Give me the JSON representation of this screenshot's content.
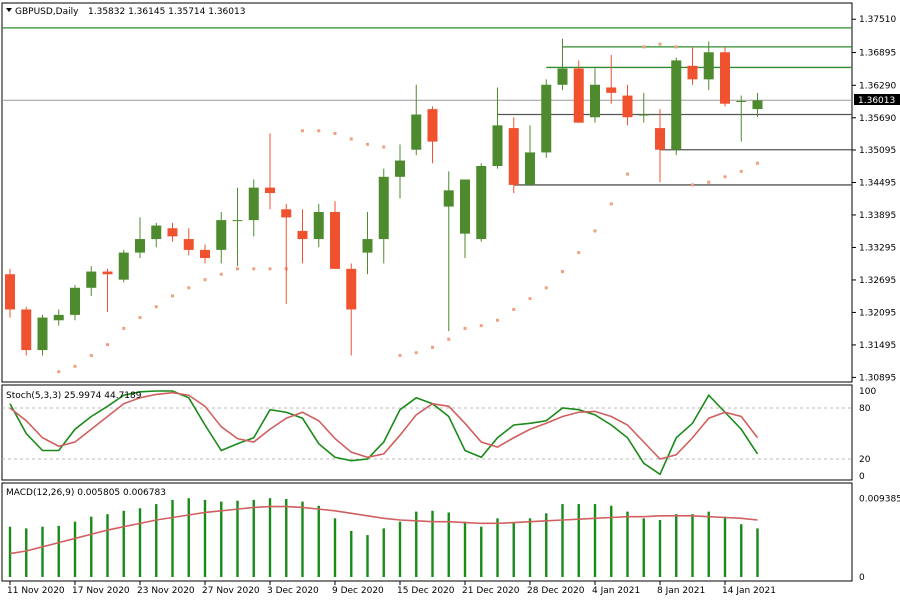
{
  "header": {
    "symbol_label": "GBPUSD,Daily",
    "ohlc": "1.35832 1.36145 1.35714 1.36013"
  },
  "colors": {
    "bull": "#4e8a2e",
    "bear": "#f0522f",
    "sar": "#f0a080",
    "level": "#2e8b2e",
    "support": "#555555",
    "stoch_main": "#1a8a1a",
    "stoch_signal": "#d06060",
    "macd_hist": "#1a8a1a",
    "macd_signal": "#d06060",
    "price_tag_bg": "#000000"
  },
  "chart_data": [
    {
      "type": "candlestick",
      "panel": "price",
      "y_ticks": [
        "1.37510",
        "1.36895",
        "1.36290",
        "1.35690",
        "1.35095",
        "1.34495",
        "1.33895",
        "1.33295",
        "1.32695",
        "1.32095",
        "1.31495",
        "1.30895"
      ],
      "ylim": [
        1.3081,
        1.3781
      ],
      "current_price": "1.36013",
      "x_ticks": [
        {
          "i": 0,
          "label": "11 Nov 2020"
        },
        {
          "i": 4,
          "label": "17 Nov 2020"
        },
        {
          "i": 8,
          "label": "23 Nov 2020"
        },
        {
          "i": 12,
          "label": "27 Nov 2020"
        },
        {
          "i": 16,
          "label": "3 Dec 2020"
        },
        {
          "i": 20,
          "label": "9 Dec 2020"
        },
        {
          "i": 24,
          "label": "15 Dec 2020"
        },
        {
          "i": 28,
          "label": "21 Dec 2020"
        },
        {
          "i": 32,
          "label": "28 Dec 2020"
        },
        {
          "i": 36,
          "label": "4 Jan 2021"
        },
        {
          "i": 40,
          "label": "8 Jan 2021"
        },
        {
          "i": 44,
          "label": "14 Jan 2021"
        }
      ],
      "candles": [
        [
          1.328,
          1.329,
          1.32,
          1.3215
        ],
        [
          1.3215,
          1.322,
          1.313,
          1.314
        ],
        [
          1.314,
          1.3205,
          1.313,
          1.32
        ],
        [
          1.3195,
          1.3215,
          1.3185,
          1.3205
        ],
        [
          1.3205,
          1.326,
          1.3195,
          1.3255
        ],
        [
          1.3255,
          1.3295,
          1.324,
          1.3285
        ],
        [
          1.3285,
          1.329,
          1.321,
          1.328
        ],
        [
          1.327,
          1.3325,
          1.3265,
          1.332
        ],
        [
          1.332,
          1.3385,
          1.331,
          1.3345
        ],
        [
          1.3345,
          1.3375,
          1.333,
          1.337
        ],
        [
          1.3365,
          1.3375,
          1.334,
          1.335
        ],
        [
          1.3345,
          1.3365,
          1.3315,
          1.3325
        ],
        [
          1.3325,
          1.3335,
          1.33,
          1.331
        ],
        [
          1.3325,
          1.3395,
          1.33,
          1.338
        ],
        [
          1.338,
          1.344,
          1.3295,
          1.338
        ],
        [
          1.338,
          1.3455,
          1.335,
          1.344
        ],
        [
          1.344,
          1.354,
          1.34,
          1.343
        ],
        [
          1.34,
          1.341,
          1.3225,
          1.3385
        ],
        [
          1.336,
          1.34,
          1.33,
          1.3345
        ],
        [
          1.3345,
          1.341,
          1.333,
          1.3395
        ],
        [
          1.3395,
          1.3415,
          1.329,
          1.329
        ],
        [
          1.329,
          1.33,
          1.313,
          1.3215
        ],
        [
          1.332,
          1.3395,
          1.328,
          1.3345
        ],
        [
          1.3345,
          1.3475,
          1.33,
          1.346
        ],
        [
          1.346,
          1.352,
          1.342,
          1.349
        ],
        [
          1.351,
          1.363,
          1.35,
          1.3575
        ],
        [
          1.3585,
          1.359,
          1.3485,
          1.3525
        ],
        [
          1.3405,
          1.347,
          1.3175,
          1.3435
        ],
        [
          1.3355,
          1.345,
          1.331,
          1.3455
        ],
        [
          1.3345,
          1.3485,
          1.334,
          1.348
        ],
        [
          1.348,
          1.3625,
          1.3475,
          1.3555
        ],
        [
          1.355,
          1.357,
          1.343,
          1.3445
        ],
        [
          1.3445,
          1.3555,
          1.3445,
          1.3505
        ],
        [
          1.3505,
          1.364,
          1.3495,
          1.363
        ],
        [
          1.363,
          1.3715,
          1.362,
          1.366
        ],
        [
          1.366,
          1.3675,
          1.356,
          1.356
        ],
        [
          1.357,
          1.366,
          1.356,
          1.363
        ],
        [
          1.3625,
          1.3685,
          1.3595,
          1.3615
        ],
        [
          1.361,
          1.363,
          1.3555,
          1.357
        ],
        [
          1.3575,
          1.3615,
          1.356,
          1.3575
        ],
        [
          1.355,
          1.3585,
          1.345,
          1.351
        ],
        [
          1.351,
          1.368,
          1.35,
          1.3675
        ],
        [
          1.3665,
          1.37,
          1.363,
          1.364
        ],
        [
          1.364,
          1.371,
          1.362,
          1.369
        ],
        [
          1.369,
          1.37,
          1.359,
          1.3595
        ],
        [
          1.36,
          1.361,
          1.3525,
          1.36
        ],
        [
          1.3585,
          1.3615,
          1.357,
          1.3601
        ]
      ],
      "sar": [
        [
          3,
          1.31
        ],
        [
          4,
          1.311
        ],
        [
          5,
          1.313
        ],
        [
          6,
          1.315
        ],
        [
          7,
          1.318
        ],
        [
          8,
          1.32
        ],
        [
          9,
          1.322
        ],
        [
          10,
          1.324
        ],
        [
          11,
          1.3255
        ],
        [
          12,
          1.327
        ],
        [
          13,
          1.328
        ],
        [
          14,
          1.329
        ],
        [
          15,
          1.329
        ],
        [
          16,
          1.329
        ],
        [
          17,
          1.329
        ],
        [
          18,
          1.3545
        ],
        [
          19,
          1.3545
        ],
        [
          20,
          1.354
        ],
        [
          21,
          1.353
        ],
        [
          22,
          1.352
        ],
        [
          23,
          1.3515
        ],
        [
          24,
          1.313
        ],
        [
          25,
          1.3135
        ],
        [
          26,
          1.3145
        ],
        [
          27,
          1.316
        ],
        [
          28,
          1.318
        ],
        [
          29,
          1.3185
        ],
        [
          30,
          1.3195
        ],
        [
          31,
          1.3215
        ],
        [
          32,
          1.3235
        ],
        [
          33,
          1.3255
        ],
        [
          34,
          1.3285
        ],
        [
          35,
          1.332
        ],
        [
          36,
          1.336
        ],
        [
          37,
          1.341
        ],
        [
          38,
          1.3465
        ],
        [
          39,
          1.37
        ],
        [
          40,
          1.3705
        ],
        [
          41,
          1.37
        ],
        [
          42,
          1.3445
        ],
        [
          43,
          1.345
        ],
        [
          44,
          1.346
        ],
        [
          45,
          1.347
        ],
        [
          46,
          1.3485
        ]
      ],
      "levels": [
        {
          "kind": "resistance",
          "value": 1.3735,
          "from": -1,
          "to": 49
        },
        {
          "kind": "resistance",
          "value": 1.37,
          "from": 34,
          "to": 49
        },
        {
          "kind": "resistance",
          "value": 1.3662,
          "from": 33,
          "to": 49
        },
        {
          "kind": "support",
          "value": 1.3575,
          "from": 30,
          "to": 49
        },
        {
          "kind": "support",
          "value": 1.351,
          "from": 40,
          "to": 49
        },
        {
          "kind": "support",
          "value": 1.3445,
          "from": 31,
          "to": 49
        }
      ]
    },
    {
      "type": "line",
      "panel": "stochastic",
      "label": "Stoch(5,3,3) 25.9974 44.7189",
      "y_ticks": [
        "100",
        "80",
        "20",
        "0"
      ],
      "levels": [
        80,
        20
      ],
      "ylim": [
        0,
        100
      ],
      "series": [
        {
          "values": [
            85,
            50,
            30,
            30,
            55,
            70,
            82,
            95,
            99,
            100,
            100,
            92,
            60,
            30,
            38,
            45,
            78,
            75,
            68,
            38,
            22,
            18,
            20,
            40,
            78,
            92,
            85,
            70,
            30,
            22,
            45,
            60,
            62,
            65,
            80,
            78,
            72,
            60,
            45,
            15,
            2,
            45,
            62,
            95,
            75,
            55,
            26
          ]
        },
        {
          "values": [
            80,
            65,
            45,
            35,
            40,
            55,
            70,
            85,
            92,
            96,
            98,
            95,
            82,
            58,
            44,
            40,
            55,
            68,
            75,
            65,
            44,
            28,
            22,
            26,
            48,
            72,
            85,
            82,
            62,
            40,
            34,
            45,
            55,
            62,
            70,
            75,
            76,
            70,
            60,
            40,
            20,
            25,
            45,
            68,
            75,
            70,
            45
          ]
        }
      ]
    },
    {
      "type": "bar",
      "panel": "macd",
      "label": "MACD(12,26,9) 0.005805 0.006783",
      "y_ticks": [
        "0.009385",
        "0"
      ],
      "ylim": [
        0,
        0.0105
      ],
      "histogram": [
        0.006,
        0.0058,
        0.006,
        0.0061,
        0.0066,
        0.0072,
        0.0075,
        0.0079,
        0.0082,
        0.0087,
        0.0092,
        0.0094,
        0.0092,
        0.009,
        0.0091,
        0.0092,
        0.0094,
        0.0093,
        0.009,
        0.0085,
        0.007,
        0.0055,
        0.005,
        0.0058,
        0.0066,
        0.0078,
        0.0079,
        0.0077,
        0.0066,
        0.006,
        0.007,
        0.0065,
        0.007,
        0.0076,
        0.0087,
        0.0087,
        0.0087,
        0.0085,
        0.0078,
        0.007,
        0.0068,
        0.0075,
        0.0075,
        0.0078,
        0.0072,
        0.0063,
        0.0058
      ],
      "signal": [
        0.0028,
        0.0031,
        0.0036,
        0.0041,
        0.0046,
        0.0051,
        0.0056,
        0.006,
        0.0064,
        0.0068,
        0.0071,
        0.0074,
        0.0077,
        0.0079,
        0.0081,
        0.0083,
        0.0084,
        0.0084,
        0.0083,
        0.0081,
        0.0079,
        0.0076,
        0.0073,
        0.007,
        0.0068,
        0.0067,
        0.0066,
        0.0066,
        0.0065,
        0.0064,
        0.0064,
        0.0065,
        0.0066,
        0.0067,
        0.0068,
        0.0069,
        0.007,
        0.0071,
        0.0072,
        0.0072,
        0.0073,
        0.0073,
        0.0073,
        0.0072,
        0.0071,
        0.007,
        0.0068
      ]
    }
  ]
}
